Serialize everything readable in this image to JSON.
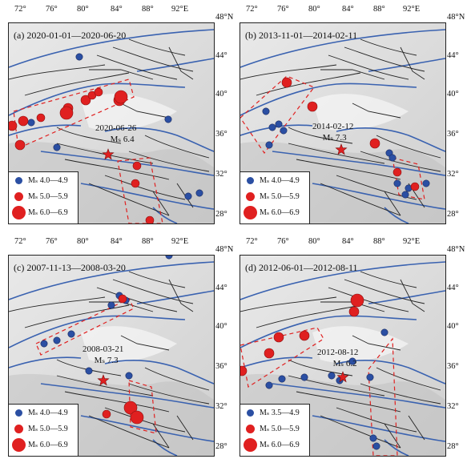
{
  "colors": {
    "blue": "#2b4fa3",
    "red": "#e02020",
    "fault": "#222222",
    "river": "#3a62b0",
    "box": "#e02020"
  },
  "top_lon_ticks": [
    "72°",
    "76°",
    "80°",
    "84°",
    "88°",
    "92°E"
  ],
  "lat_ticks": [
    "48°N",
    "44°",
    "40°",
    "36°",
    "32°",
    "28°"
  ],
  "panels": [
    {
      "title": "(a) 2020-01-01—2020-06-20",
      "event_date": "2020-06-26",
      "event_mag": "Mₛ 6.4",
      "legend": [
        "Mₛ 4.0—4.9",
        "Mₛ 5.0—5.9",
        "Mₛ 6.0—6.9"
      ]
    },
    {
      "title": "(b) 2013-11-01—2014-02-11",
      "event_date": "2014-02-12",
      "event_mag": "Mₛ 7.3",
      "legend": [
        "Mₛ 4.0—4.9",
        "Mₛ 5.0—5.9",
        "Mₛ 6.0—6.9"
      ]
    },
    {
      "title": "(c) 2007-11-13—2008-03-20",
      "event_date": "2008-03-21",
      "event_mag": "Mₛ 7.3",
      "legend": [
        "Mₛ 4.0—4.9",
        "Mₛ 5.0—5.9",
        "Mₛ 6.0—6.9"
      ]
    },
    {
      "title": "(d) 2012-06-01—2012-08-11",
      "event_date": "2012-08-12",
      "event_mag": "Mₛ 6.2",
      "legend": [
        "Mₛ 3.5—4.9",
        "Mₛ 5.0—5.9",
        "Mₛ 6.0—6.9"
      ]
    }
  ]
}
